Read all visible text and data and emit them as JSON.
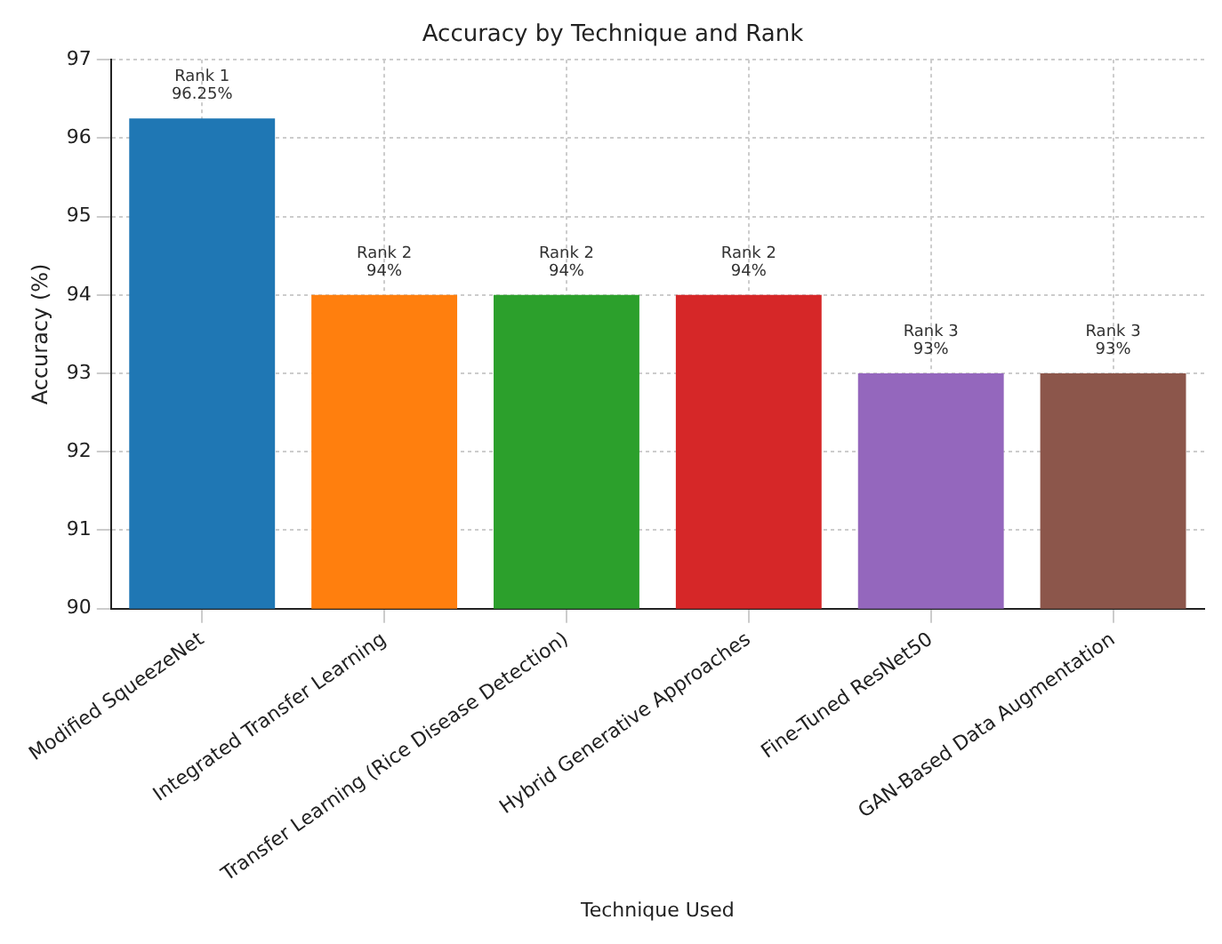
{
  "chart_data": {
    "type": "bar",
    "title": "Accuracy by Technique and Rank",
    "xlabel": "Technique Used",
    "ylabel": "Accuracy (%)",
    "categories": [
      "Modified SqueezeNet",
      "Integrated Transfer Learning",
      "Transfer Learning (Rice Disease Detection)",
      "Hybrid Generative Approaches",
      "Fine-Tuned ResNet50",
      "GAN-Based Data Augmentation"
    ],
    "values": [
      96.25,
      94,
      94,
      94,
      93,
      93
    ],
    "colors": [
      "#1f77b4",
      "#ff7f0e",
      "#2ca02c",
      "#d62728",
      "#9467bd",
      "#8c564b"
    ],
    "value_labels": [
      "Rank 1\n96.25%",
      "Rank 2\n94%",
      "Rank 2\n94%",
      "Rank 2\n94%",
      "Rank 3\n93%",
      "Rank 3\n93%"
    ],
    "ylim": [
      90,
      97
    ],
    "yticks": [
      90,
      91,
      92,
      93,
      94,
      95,
      96,
      97
    ],
    "grid": true,
    "legend": false
  }
}
